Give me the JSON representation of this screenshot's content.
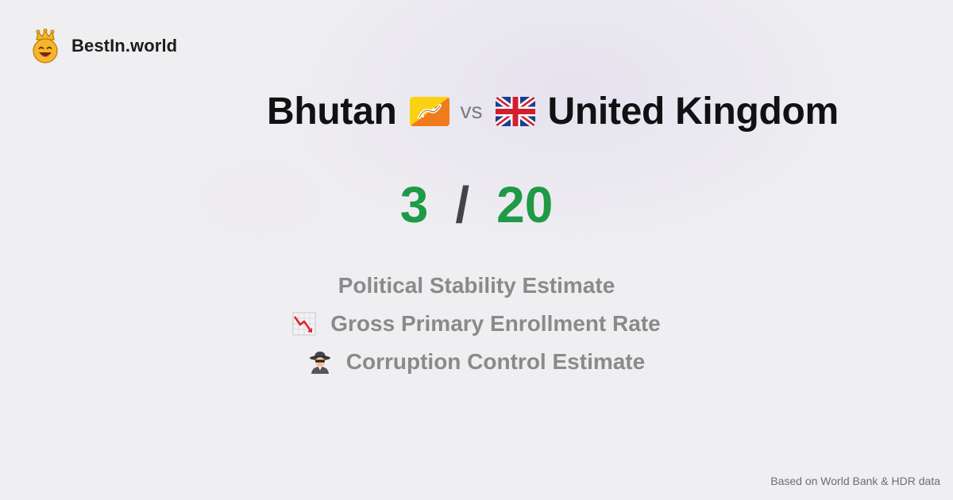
{
  "brand": {
    "name": "BestIn.world",
    "logo_icon": "crown-smiley-icon"
  },
  "comparison": {
    "country_a": {
      "name": "Bhutan",
      "flag_icon": "bhutan-flag-icon"
    },
    "vs_label": "vs",
    "country_b": {
      "name": "United Kingdom",
      "flag_icon": "uk-flag-icon"
    }
  },
  "score": {
    "a": "3",
    "separator": "/",
    "b": "20"
  },
  "metrics": [
    {
      "label": "Political Stability Estimate",
      "icon": ""
    },
    {
      "label": "Gross Primary Enrollment Rate",
      "icon": "chart-decreasing-icon"
    },
    {
      "label": "Corruption Control Estimate",
      "icon": "detective-icon"
    }
  ],
  "footer": {
    "source": "Based on World Bank & HDR data"
  },
  "colors": {
    "score_green": "#1f9a46",
    "background": "#efeef1",
    "metric_gray": "#8a8a8a"
  }
}
